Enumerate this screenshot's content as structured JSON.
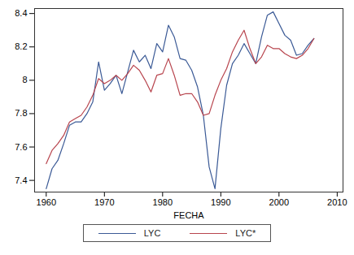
{
  "chart_data": {
    "type": "line",
    "x_label": "FECHA",
    "x": [
      1960,
      1961,
      1962,
      1963,
      1964,
      1965,
      1966,
      1967,
      1968,
      1969,
      1970,
      1971,
      1972,
      1973,
      1974,
      1975,
      1976,
      1977,
      1978,
      1979,
      1980,
      1981,
      1982,
      1983,
      1984,
      1985,
      1986,
      1987,
      1988,
      1989,
      1990,
      1991,
      1992,
      1993,
      1994,
      1995,
      1996,
      1997,
      1998,
      1999,
      2000,
      2001,
      2002,
      2003,
      2004,
      2005,
      2006
    ],
    "series": [
      {
        "name": "LYC",
        "color": "#3b5a96",
        "values": [
          7.35,
          7.47,
          7.52,
          7.62,
          7.73,
          7.75,
          7.75,
          7.8,
          7.87,
          8.11,
          7.94,
          7.98,
          8.03,
          7.92,
          8.05,
          8.18,
          8.11,
          8.15,
          8.07,
          8.22,
          8.17,
          8.33,
          8.26,
          8.13,
          8.12,
          8.06,
          7.96,
          7.79,
          7.48,
          7.35,
          7.71,
          7.97,
          8.1,
          8.15,
          8.22,
          8.16,
          8.1,
          8.26,
          8.39,
          8.41,
          8.34,
          8.27,
          8.24,
          8.15,
          8.16,
          8.21,
          8.25
        ]
      },
      {
        "name": "LYC*",
        "color": "#b8454e",
        "values": [
          7.5,
          7.58,
          7.62,
          7.67,
          7.75,
          7.77,
          7.79,
          7.84,
          7.91,
          8.01,
          7.98,
          8.0,
          8.03,
          8.0,
          8.04,
          8.09,
          8.06,
          8.0,
          7.93,
          8.03,
          8.04,
          8.13,
          8.03,
          7.91,
          7.92,
          7.92,
          7.87,
          7.79,
          7.8,
          7.91,
          8.0,
          8.07,
          8.17,
          8.24,
          8.3,
          8.19,
          8.1,
          8.14,
          8.21,
          8.19,
          8.19,
          8.16,
          8.14,
          8.13,
          8.15,
          8.19,
          8.25
        ]
      }
    ],
    "xlim": [
      1958,
      2011
    ],
    "xticks": [
      1960,
      1970,
      1980,
      1990,
      2000,
      2010
    ],
    "ylim": [
      7.33,
      8.43
    ],
    "yticks": [
      7.4,
      7.6,
      7.8,
      8,
      8.2,
      8.4
    ],
    "grid": false,
    "legend": "bottom"
  }
}
